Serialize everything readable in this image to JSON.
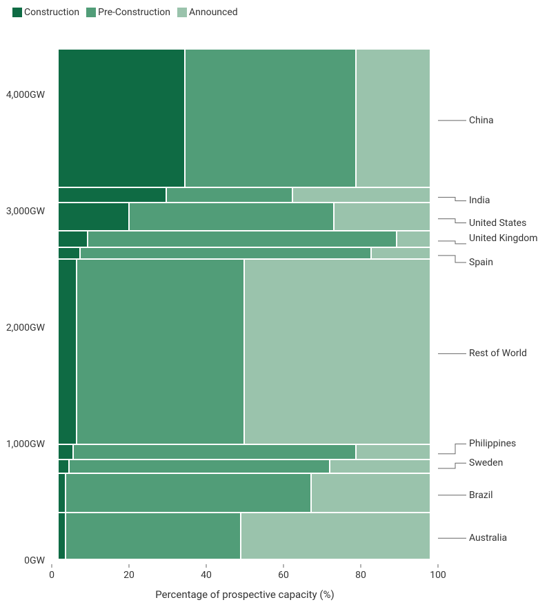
{
  "chart": {
    "type": "marimekko",
    "legend": [
      {
        "label": "Construction",
        "color": "#0f6b44"
      },
      {
        "label": "Pre-Construction",
        "color": "#519d78"
      },
      {
        "label": "Announced",
        "color": "#9ac3ac"
      }
    ],
    "y_axis": {
      "ticks": [
        {
          "value": 0,
          "label": "0GW"
        },
        {
          "value": 1000,
          "label": "1,000GW"
        },
        {
          "value": 2000,
          "label": "2,000GW"
        },
        {
          "value": 3000,
          "label": "3,000GW"
        },
        {
          "value": 4000,
          "label": "4,000GW"
        }
      ],
      "max": 4500
    },
    "x_axis": {
      "label": "Percentage of prospective capacity (%)",
      "ticks": [
        0,
        20,
        40,
        60,
        80,
        100
      ]
    },
    "rows": [
      {
        "name": "Australia",
        "gw": 400,
        "segments": [
          2,
          47,
          51
        ]
      },
      {
        "name": "Brazil",
        "gw": 340,
        "segments": [
          2,
          66,
          32
        ]
      },
      {
        "name": "Sweden",
        "gw": 120,
        "segments": [
          3,
          70,
          27
        ]
      },
      {
        "name": "Philippines",
        "gw": 130,
        "segments": [
          4,
          76,
          20
        ]
      },
      {
        "name": "Rest of World",
        "gw": 1590,
        "segments": [
          5,
          45,
          50
        ]
      },
      {
        "name": "Spain",
        "gw": 100,
        "segments": [
          6,
          78,
          16
        ]
      },
      {
        "name": "United Kingdom",
        "gw": 145,
        "segments": [
          8,
          83,
          9
        ]
      },
      {
        "name": "United States",
        "gw": 240,
        "segments": [
          19,
          55,
          26
        ]
      },
      {
        "name": "India",
        "gw": 130,
        "segments": [
          29,
          34,
          37
        ]
      },
      {
        "name": "China",
        "gw": 1190,
        "segments": [
          34,
          46,
          20
        ]
      }
    ],
    "label_positions": [
      {
        "name": "Australia",
        "text_y_gw": 200,
        "target_y_gw": 200
      },
      {
        "name": "Brazil",
        "text_y_gw": 570,
        "target_y_gw": 570
      },
      {
        "name": "Sweden",
        "text_y_gw": 845,
        "target_y_gw": 800
      },
      {
        "name": "Philippines",
        "text_y_gw": 1010,
        "target_y_gw": 925
      },
      {
        "name": "Rest of World",
        "text_y_gw": 1786,
        "target_y_gw": 1786
      },
      {
        "name": "Spain",
        "text_y_gw": 2570,
        "target_y_gw": 2630
      },
      {
        "name": "United Kingdom",
        "text_y_gw": 2730,
        "target_y_gw": 2754,
        "lines": 2
      },
      {
        "name": "United States",
        "text_y_gw": 2910,
        "target_y_gw": 2945
      },
      {
        "name": "India",
        "text_y_gw": 3100,
        "target_y_gw": 3130
      },
      {
        "name": "China",
        "text_y_gw": 3790,
        "target_y_gw": 3790
      }
    ],
    "colors": {
      "background": "#ffffff",
      "text": "#333333",
      "axis": "#666666"
    },
    "font_size": 14
  }
}
